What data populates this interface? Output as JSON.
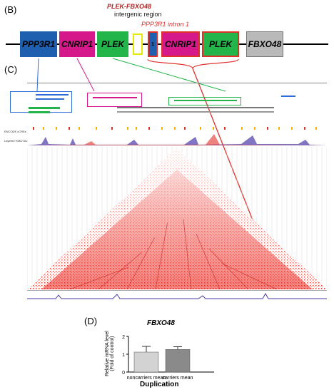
{
  "panel_b": {
    "label": "(B)",
    "intergenic_title": "PLEK-FBXO48",
    "intergenic_subtitle": "intergenic region",
    "intron_label": "PPP3R1 intron 1",
    "genes": [
      {
        "name": "PPP3R1",
        "color": "#1f5fb0",
        "text_color": "#000000"
      },
      {
        "name": "CNRIP1",
        "color": "#d6198a",
        "text_color": "#000000"
      },
      {
        "name": "PLEK",
        "color": "#23b44a",
        "text_color": "#000000"
      },
      {
        "name": "",
        "color": "#ffffff",
        "border": "#e8e800"
      },
      {
        "name": "1",
        "color": "#1f5fb0",
        "border": "#e0302a"
      },
      {
        "name": "CNRIP1",
        "color": "#d6198a",
        "border": "#e0302a"
      },
      {
        "name": "PLEK",
        "color": "#23b44a",
        "border": "#e0302a"
      },
      {
        "name": "FBXO48",
        "color": "#b9b9b9",
        "text_color": "#000000"
      }
    ]
  },
  "panel_c": {
    "label": "(C)",
    "track_labels": [
      "ENCODE cCREs",
      "Layered H3K27Ac"
    ],
    "arrow_colors": {
      "blue": "#2e6bd6",
      "magenta": "#d6198a",
      "green": "#23b44a",
      "red": "#e0302a"
    }
  },
  "panel_d": {
    "label": "(D)",
    "title": "FBXO48",
    "xlabel": "Duplication",
    "ylabel_line1": "Relative mRNA level",
    "ylabel_line2": "(Fold of control)"
  },
  "chart_data": {
    "type": "bar",
    "title": "FBXO48",
    "xlabel": "Duplication",
    "ylabel": "Relative mRNA level (Fold of control)",
    "categories": [
      "noncarriers mean",
      "carriers mean"
    ],
    "values": [
      1.12,
      1.27
    ],
    "errors": [
      0.32,
      0.15
    ],
    "colors": [
      "#d3d3d3",
      "#8a8a8a"
    ],
    "ylim": [
      0,
      2
    ],
    "yticks": [
      0,
      1,
      2
    ]
  }
}
